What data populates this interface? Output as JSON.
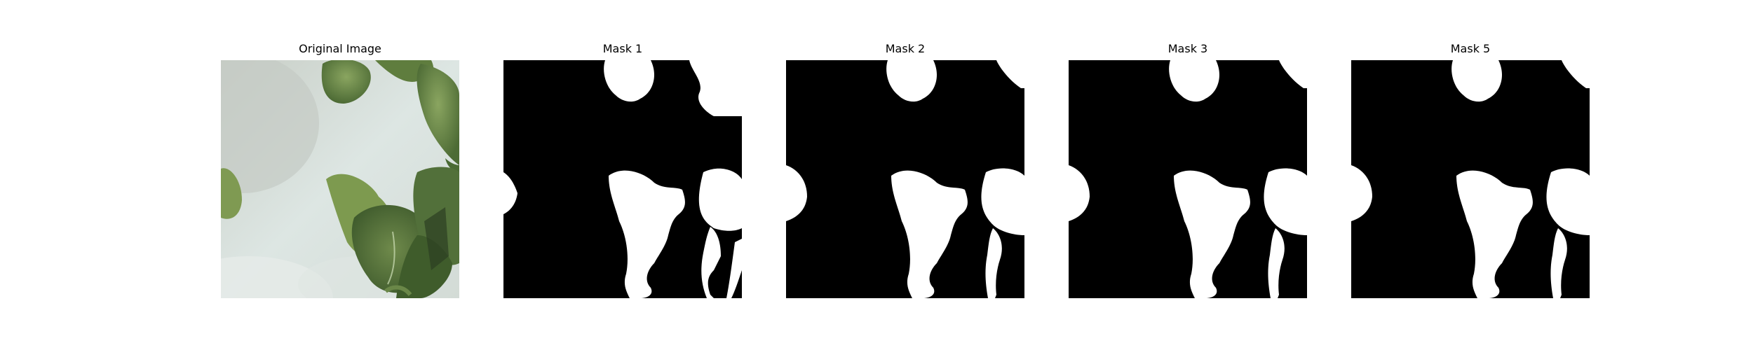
{
  "panels": [
    {
      "title": "Original Image"
    },
    {
      "title": "Mask 1"
    },
    {
      "title": "Mask 2"
    },
    {
      "title": "Mask 3"
    },
    {
      "title": "Mask 5"
    }
  ]
}
